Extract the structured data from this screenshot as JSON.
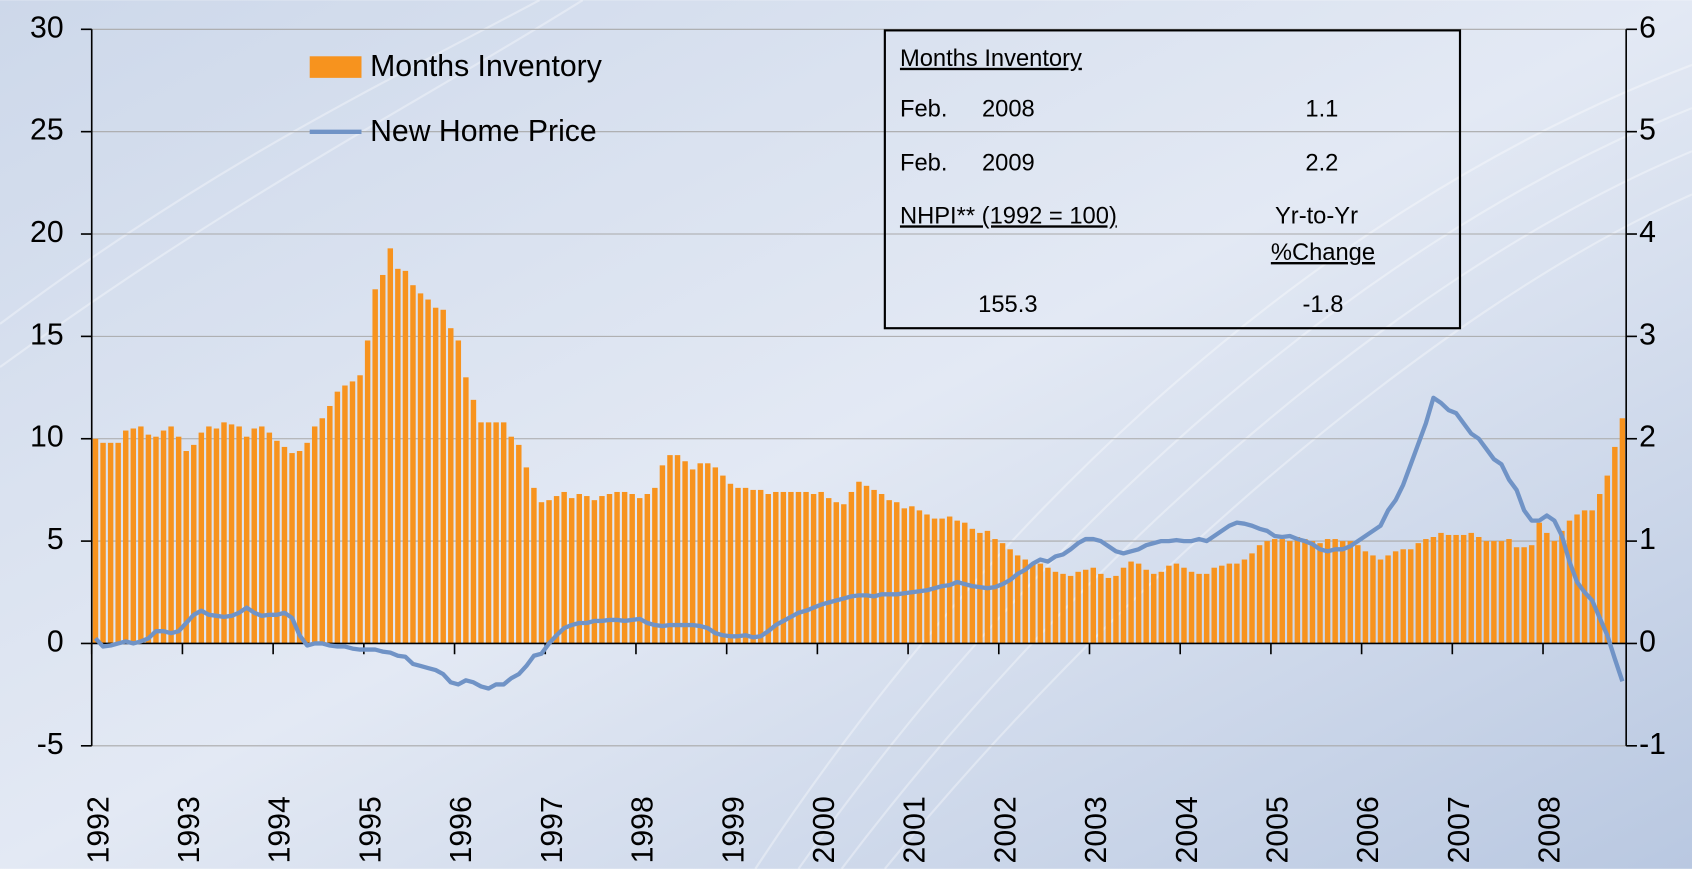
{
  "chart_data": {
    "type": "bar",
    "categories": [
      "1992",
      null,
      null,
      null,
      null,
      null,
      null,
      null,
      null,
      null,
      null,
      null,
      "1993",
      null,
      null,
      null,
      null,
      null,
      null,
      null,
      null,
      null,
      null,
      null,
      "1994",
      null,
      null,
      null,
      null,
      null,
      null,
      null,
      null,
      null,
      null,
      null,
      "1995",
      null,
      null,
      null,
      null,
      null,
      null,
      null,
      null,
      null,
      null,
      null,
      "1996",
      null,
      null,
      null,
      null,
      null,
      null,
      null,
      null,
      null,
      null,
      null,
      "1997",
      null,
      null,
      null,
      null,
      null,
      null,
      null,
      null,
      null,
      null,
      null,
      "1998",
      null,
      null,
      null,
      null,
      null,
      null,
      null,
      null,
      null,
      null,
      null,
      "1999",
      null,
      null,
      null,
      null,
      null,
      null,
      null,
      null,
      null,
      null,
      null,
      "2000",
      null,
      null,
      null,
      null,
      null,
      null,
      null,
      null,
      null,
      null,
      null,
      "2001",
      null,
      null,
      null,
      null,
      null,
      null,
      null,
      null,
      null,
      null,
      null,
      "2002",
      null,
      null,
      null,
      null,
      null,
      null,
      null,
      null,
      null,
      null,
      null,
      "2003",
      null,
      null,
      null,
      null,
      null,
      null,
      null,
      null,
      null,
      null,
      null,
      "2004",
      null,
      null,
      null,
      null,
      null,
      null,
      null,
      null,
      null,
      null,
      null,
      "2005",
      null,
      null,
      null,
      null,
      null,
      null,
      null,
      null,
      null,
      null,
      null,
      "2006",
      null,
      null,
      null,
      null,
      null,
      null,
      null,
      null,
      null,
      null,
      null,
      "2007",
      null,
      null,
      null,
      null,
      null,
      null,
      null,
      null,
      null,
      null,
      null,
      "2008",
      null,
      null,
      null,
      null,
      null,
      null,
      null,
      null,
      null,
      null
    ],
    "series": [
      {
        "name": "Months Inventory",
        "type": "bar",
        "color": "#f7931e",
        "values": [
          10,
          9.8,
          9.8,
          9.8,
          10.4,
          10.5,
          10.6,
          10.2,
          10.1,
          10.4,
          10.6,
          10.1,
          9.4,
          9.7,
          10.3,
          10.6,
          10.5,
          10.8,
          10.7,
          10.6,
          10.1,
          10.5,
          10.6,
          10.3,
          9.9,
          9.6,
          9.3,
          9.4,
          9.8,
          10.6,
          11.0,
          11.6,
          12.3,
          12.6,
          12.8,
          13.1,
          14.8,
          17.3,
          18.0,
          19.3,
          18.3,
          18.2,
          17.5,
          17.1,
          16.8,
          16.4,
          16.3,
          15.4,
          14.8,
          13.0,
          11.9,
          10.8,
          10.8,
          10.8,
          10.8,
          10.1,
          9.7,
          8.6,
          7.6,
          6.9,
          7.0,
          7.2,
          7.4,
          7.1,
          7.3,
          7.2,
          7.0,
          7.2,
          7.3,
          7.4,
          7.4,
          7.3,
          7.1,
          7.3,
          7.6,
          8.7,
          9.2,
          9.2,
          8.9,
          8.5,
          8.8,
          8.8,
          8.6,
          8.2,
          7.8,
          7.6,
          7.6,
          7.5,
          7.5,
          7.3,
          7.4,
          7.4,
          7.4,
          7.4,
          7.4,
          7.3,
          7.4,
          7.1,
          6.9,
          6.8,
          7.4,
          7.9,
          7.7,
          7.5,
          7.3,
          7.0,
          6.9,
          6.6,
          6.7,
          6.5,
          6.3,
          6.1,
          6.1,
          6.2,
          6.0,
          5.9,
          5.6,
          5.4,
          5.5,
          5.1,
          4.9,
          4.6,
          4.3,
          4.1,
          3.9,
          3.9,
          3.7,
          3.5,
          3.4,
          3.3,
          3.5,
          3.6,
          3.7,
          3.4,
          3.2,
          3.3,
          3.7,
          4.0,
          3.9,
          3.6,
          3.4,
          3.5,
          3.8,
          3.9,
          3.7,
          3.5,
          3.4,
          3.4,
          3.7,
          3.8,
          3.9,
          3.9,
          4.1,
          4.4,
          4.8,
          5.0,
          5.1,
          5.1,
          5.0,
          5.2,
          5.1,
          5.0,
          4.9,
          5.1,
          5.1,
          5.0,
          5.0,
          4.8,
          4.5,
          4.3,
          4.1,
          4.3,
          4.5,
          4.6,
          4.6,
          4.9,
          5.1,
          5.2,
          5.4,
          5.3,
          5.3,
          5.3,
          5.4,
          5.2,
          5.0,
          5.0,
          5.0,
          5.1,
          4.7,
          4.7,
          4.8,
          5.9,
          5.4,
          5.0,
          5.5,
          6.0,
          6.3,
          6.5,
          6.5,
          7.3,
          8.2,
          9.6,
          11.0
        ]
      },
      {
        "name": "New Home Price",
        "type": "line",
        "axis": "y2",
        "color": "#7093c6",
        "values": [
          0.05,
          -0.03,
          -0.02,
          0.0,
          0.02,
          0.0,
          0.02,
          0.05,
          0.12,
          0.12,
          0.1,
          0.12,
          0.2,
          0.28,
          0.32,
          0.28,
          0.27,
          0.26,
          0.27,
          0.3,
          0.35,
          0.3,
          0.27,
          0.28,
          0.28,
          0.3,
          0.25,
          0.08,
          -0.02,
          0.0,
          0.0,
          -0.02,
          -0.03,
          -0.03,
          -0.05,
          -0.06,
          -0.06,
          -0.06,
          -0.08,
          -0.09,
          -0.12,
          -0.13,
          -0.2,
          -0.22,
          -0.24,
          -0.26,
          -0.3,
          -0.38,
          -0.4,
          -0.36,
          -0.38,
          -0.42,
          -0.44,
          -0.4,
          -0.4,
          -0.34,
          -0.3,
          -0.22,
          -0.12,
          -0.1,
          0.0,
          0.08,
          0.15,
          0.18,
          0.2,
          0.2,
          0.22,
          0.22,
          0.23,
          0.23,
          0.22,
          0.23,
          0.24,
          0.2,
          0.18,
          0.17,
          0.18,
          0.18,
          0.18,
          0.18,
          0.17,
          0.15,
          0.1,
          0.08,
          0.07,
          0.07,
          0.08,
          0.06,
          0.07,
          0.12,
          0.18,
          0.22,
          0.26,
          0.3,
          0.32,
          0.35,
          0.38,
          0.4,
          0.42,
          0.44,
          0.46,
          0.47,
          0.47,
          0.46,
          0.48,
          0.48,
          0.48,
          0.49,
          0.5,
          0.51,
          0.52,
          0.54,
          0.56,
          0.57,
          0.6,
          0.58,
          0.56,
          0.55,
          0.54,
          0.55,
          0.58,
          0.62,
          0.68,
          0.72,
          0.78,
          0.82,
          0.8,
          0.85,
          0.87,
          0.92,
          0.98,
          1.02,
          1.02,
          1.0,
          0.95,
          0.9,
          0.88,
          0.9,
          0.92,
          0.96,
          0.98,
          1.0,
          1.0,
          1.01,
          1.0,
          1.0,
          1.02,
          1.0,
          1.05,
          1.1,
          1.15,
          1.18,
          1.17,
          1.15,
          1.12,
          1.1,
          1.05,
          1.04,
          1.05,
          1.02,
          1.0,
          0.97,
          0.92,
          0.9,
          0.92,
          0.92,
          0.95,
          1.0,
          1.05,
          1.1,
          1.15,
          1.3,
          1.4,
          1.55,
          1.75,
          1.95,
          2.15,
          2.4,
          2.35,
          2.28,
          2.25,
          2.15,
          2.05,
          2.0,
          1.9,
          1.8,
          1.75,
          1.6,
          1.5,
          1.3,
          1.2,
          1.2,
          1.25,
          1.2,
          1.05,
          0.8,
          0.6,
          0.5,
          0.42,
          0.25,
          0.08,
          -0.15,
          -0.37
        ]
      }
    ],
    "ylim": [
      -5,
      30
    ],
    "yticks": [
      -5,
      0,
      5,
      10,
      15,
      20,
      25,
      30
    ],
    "y2lim": [
      -1,
      6
    ],
    "y2ticks": [
      -1,
      0,
      1,
      2,
      3,
      4,
      5,
      6
    ],
    "grid": true
  },
  "inventory_table": {
    "heading": "Months Inventory",
    "rows": [
      {
        "month": "Feb.",
        "year": "2008",
        "value": 1.1
      },
      {
        "month": "Feb.",
        "year": "2009",
        "value": 2.2
      }
    ],
    "nhpi_label": "NHPI** (1992 = 100)",
    "change_label": [
      "Yr-to-Yr",
      "%Change"
    ],
    "nhpi_value": 155.3,
    "change_value": -1.8
  }
}
